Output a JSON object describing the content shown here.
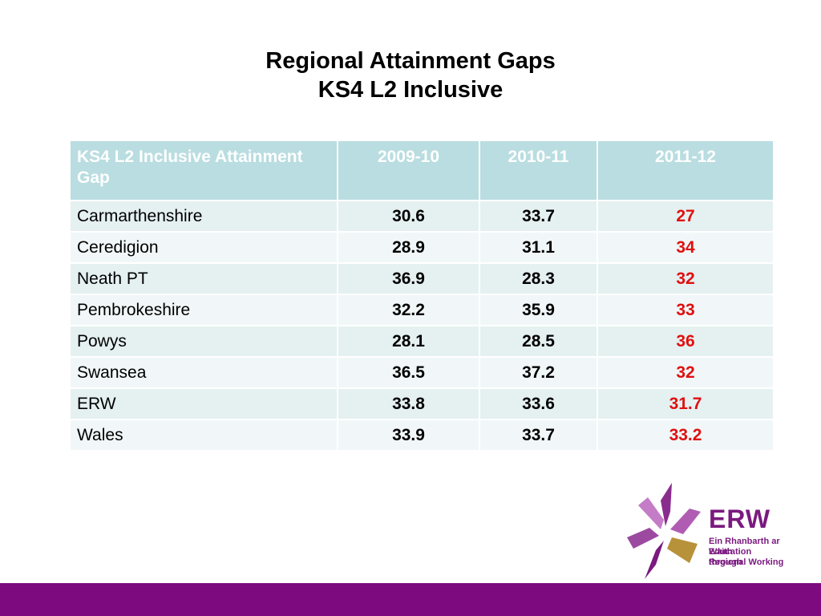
{
  "slide": {
    "title_line1": "Regional Attainment Gaps",
    "title_line2": "KS4 L2 Inclusive"
  },
  "table": {
    "header": {
      "label": "KS4 L2 Inclusive Attainment Gap",
      "years": [
        "2009-10",
        "2010-11",
        "2011-12"
      ]
    },
    "rows": [
      {
        "region": "Carmarthenshire",
        "values": [
          "30.6",
          "33.7",
          "27"
        ]
      },
      {
        "region": "Ceredigion",
        "values": [
          "28.9",
          "31.1",
          "34"
        ]
      },
      {
        "region": "Neath PT",
        "values": [
          "36.9",
          "28.3",
          "32"
        ]
      },
      {
        "region": "Pembrokeshire",
        "values": [
          "32.2",
          "35.9",
          "33"
        ]
      },
      {
        "region": "Powys",
        "values": [
          "28.1",
          "28.5",
          "36"
        ]
      },
      {
        "region": "Swansea",
        "values": [
          "36.5",
          "37.2",
          "32"
        ]
      },
      {
        "region": "ERW",
        "values": [
          "33.8",
          "33.6",
          "31.7"
        ]
      },
      {
        "region": "Wales",
        "values": [
          "33.9",
          "33.7",
          "33.2"
        ]
      }
    ]
  },
  "logo": {
    "name": "ERW",
    "line1": "Ein Rhanbarth ar Waith",
    "line2": "Education through",
    "line3": "Regional Working"
  },
  "colors": {
    "header_bg": "#b9dde0",
    "row_bg_odd": "#e5f0f1",
    "row_bg_even": "#f1f7f8",
    "latest_value": "#e01010",
    "brand_purple": "#7e0a80",
    "logo_gold": "#b8923a"
  }
}
